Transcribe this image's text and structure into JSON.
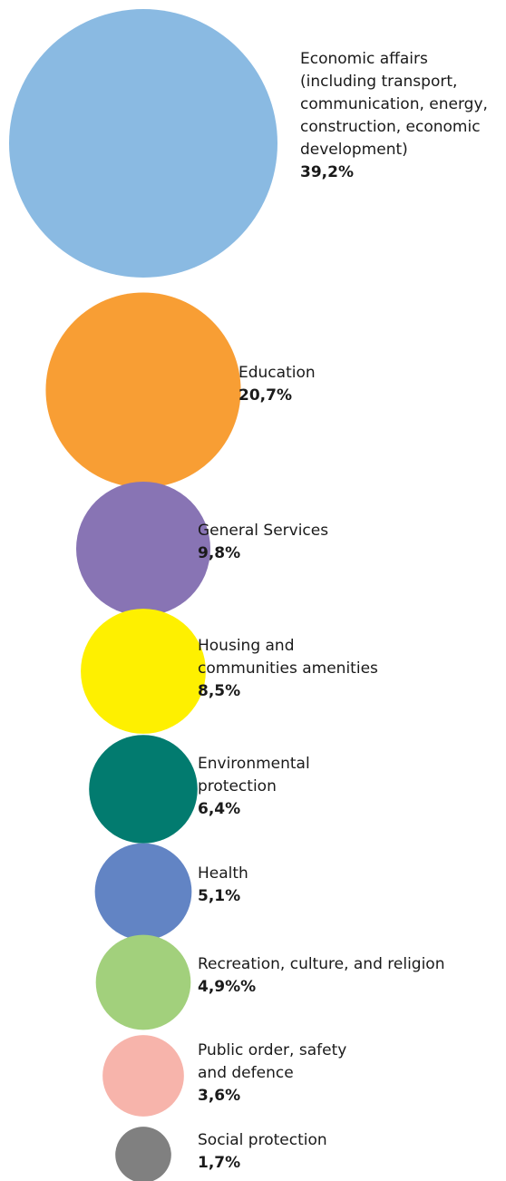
{
  "chart_data": {
    "type": "bubble",
    "unit": "%",
    "categories": [
      "Economic affairs\n(including transport,\ncommunication, energy,\nconstruction, economic\ndevelopment)",
      "Education",
      "General Services",
      "Housing and\ncommunities amenities",
      "Environmental\nprotection",
      "Health",
      "Recreation, culture, and religion",
      "Public order, safety\nand defence",
      "Social protection"
    ],
    "values": [
      39.2,
      20.7,
      9.8,
      8.5,
      6.4,
      5.1,
      4.9,
      3.6,
      1.7
    ],
    "value_labels": [
      "39,2%",
      "20,7%",
      "9,8%",
      "8,5%",
      "6,4%",
      "5,1%",
      "4,9%%",
      "3,6%",
      "1,7%"
    ],
    "colors": [
      "#8abae2",
      "#f89e34",
      "#8874b4",
      "#fef000",
      "#027b6f",
      "#6284c4",
      "#a2d07c",
      "#f7b4ab",
      "#808080"
    ]
  }
}
